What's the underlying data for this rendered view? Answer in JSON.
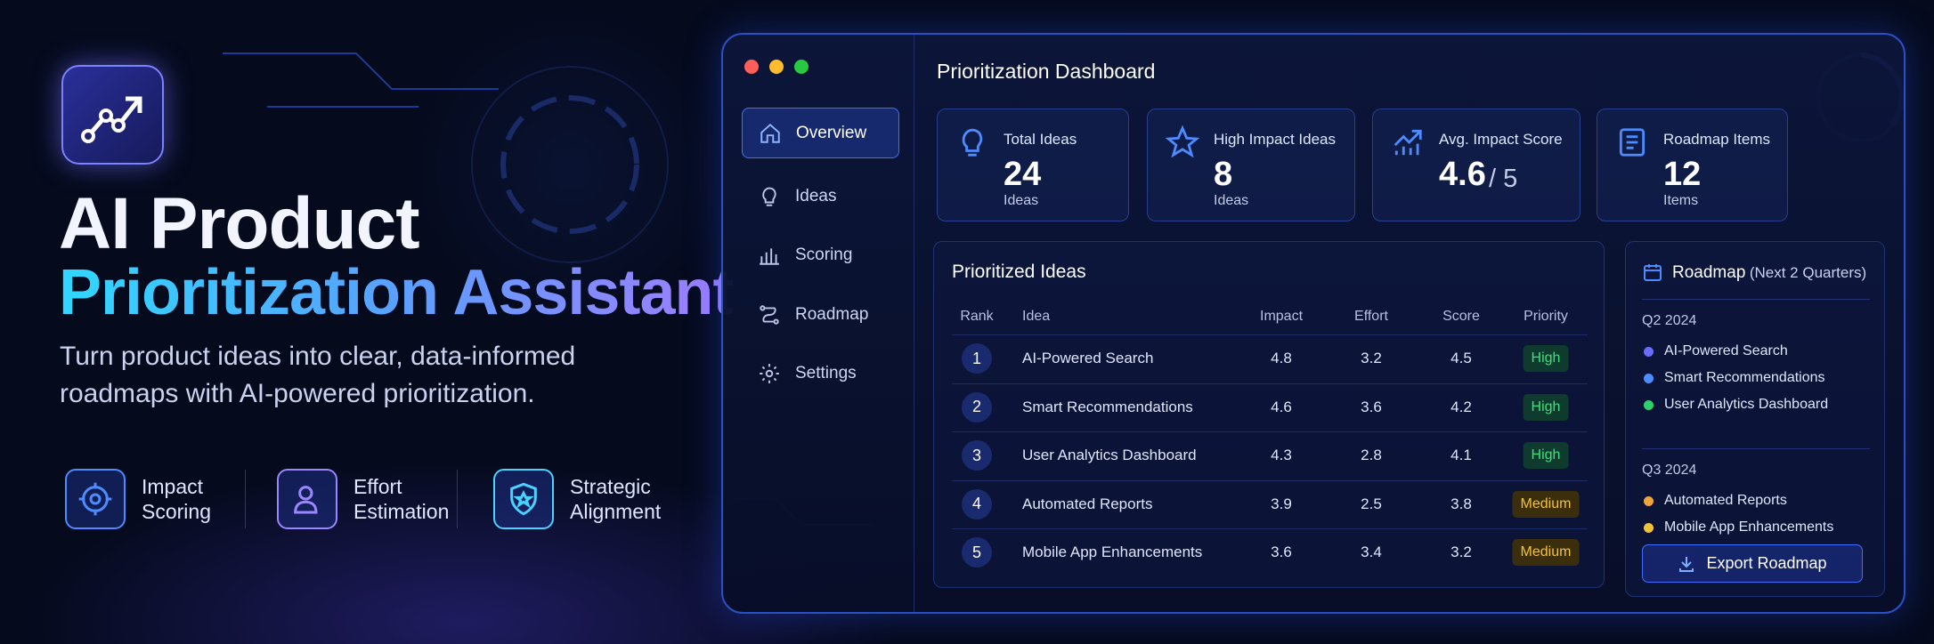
{
  "hero": {
    "title_line1": "AI Product",
    "title_line2": "Prioritization Assistant",
    "subtitle": "Turn product ideas into clear, data-informed roadmaps with AI-powered prioritization.",
    "features": [
      "Impact Scoring",
      "Effort Estimation",
      "Strategic Alignment"
    ]
  },
  "window": {
    "title": "Prioritization Dashboard",
    "nav": [
      "Overview",
      "Ideas",
      "Scoring",
      "Roadmap",
      "Settings"
    ],
    "stats": [
      {
        "label": "Total Ideas",
        "value": 24,
        "unit": "Ideas"
      },
      {
        "label": "High Impact Ideas",
        "value": 8,
        "unit": "Ideas"
      },
      {
        "label": "Avg. Impact Score",
        "value": 4.6,
        "unit": "/ 5"
      },
      {
        "label": "Roadmap Items",
        "value": 12,
        "unit": "Items"
      }
    ],
    "table": {
      "title": "Prioritized Ideas",
      "columns": [
        "Rank",
        "Idea",
        "Impact",
        "Effort",
        "Score",
        "Priority"
      ],
      "rows": [
        [
          1,
          "AI-Powered Search",
          4.8,
          3.2,
          4.5,
          "High"
        ],
        [
          2,
          "Smart Recommendations",
          4.6,
          3.6,
          4.2,
          "High"
        ],
        [
          3,
          "User Analytics Dashboard",
          4.3,
          2.8,
          4.1,
          "High"
        ],
        [
          4,
          "Automated Reports",
          3.9,
          2.5,
          3.8,
          "Medium"
        ],
        [
          5,
          "Mobile App Enhancements",
          3.6,
          3.4,
          3.2,
          "Medium"
        ]
      ]
    },
    "roadmap": {
      "title": "Roadmap",
      "title_note": "(Next 2 Quarters)",
      "groups": [
        {
          "quarter": "Q2 2024",
          "items": [
            "AI-Powered Search",
            "Smart Recommendations",
            "User Analytics Dashboard"
          ]
        },
        {
          "quarter": "Q3 2024",
          "items": [
            "Automated Reports",
            "Mobile App Enhancements"
          ]
        }
      ],
      "button": "Export Roadmap"
    }
  }
}
